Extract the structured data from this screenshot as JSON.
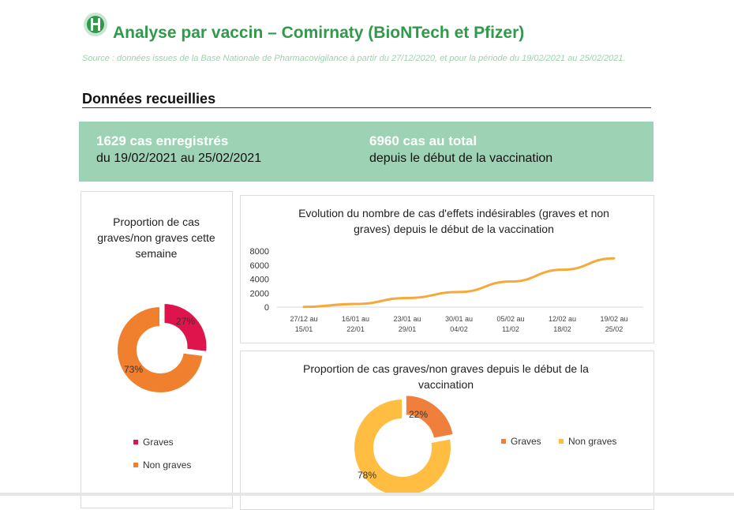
{
  "header": {
    "logo_icon": "ansm-logo-icon",
    "title": "Analyse par vaccin – Comirnaty (BioNTech et Pfizer)",
    "source": "Source : données issues de la Base Nationale de Pharmacovigilance à partir du 27/12/2020, et pour la période du 19/02/2021 au 25/02/2021."
  },
  "section": {
    "title": "Données recueillies"
  },
  "banner": {
    "left_big": "1629 cas enregistrés",
    "left_sub": "du 19/02/2021 au 25/02/2021",
    "right_big": "6960 cas au total",
    "right_sub": "depuis le début de la vaccination"
  },
  "colors": {
    "graves_week": "#e0144c",
    "non_graves_week": "#f07f2e",
    "graves_total": "#ef7f3b",
    "non_graves_total": "#ffbe42",
    "line": "#f6a93b",
    "banner": "#9dd3b4",
    "title_green": "#2f9a4a"
  },
  "chart_data": [
    {
      "type": "pie",
      "title": "Proportion de cas graves/non graves cette semaine",
      "categories": [
        "Graves",
        "Non graves"
      ],
      "values": [
        27,
        73
      ],
      "labels": [
        "27%",
        "73%"
      ],
      "legend_position": "bottom"
    },
    {
      "type": "line",
      "title": "Evolution du nombre de cas d'effets indésirables (graves et non graves) depuis le début de la vaccination",
      "categories": [
        "27/12 au 15/01",
        "16/01 au 22/01",
        "23/01 au 29/01",
        "30/01 au 04/02",
        "05/02 au 11/02",
        "12/02 au 18/02",
        "19/02 au 25/02"
      ],
      "category_lines": [
        [
          "27/12 au",
          "15/01"
        ],
        [
          "16/01 au",
          "22/01"
        ],
        [
          "23/01 au",
          "29/01"
        ],
        [
          "30/01 au",
          "04/02"
        ],
        [
          "05/02 au",
          "11/02"
        ],
        [
          "12/02 au",
          "18/02"
        ],
        [
          "19/02 au",
          "25/02"
        ]
      ],
      "values": [
        30,
        450,
        1300,
        2150,
        3650,
        5331,
        6960
      ],
      "ylim": [
        0,
        8000
      ],
      "yticks": [
        0,
        2000,
        4000,
        6000,
        8000
      ],
      "grid": false,
      "xlabel": "",
      "ylabel": ""
    },
    {
      "type": "pie",
      "title": "Proportion de cas graves/non graves depuis le début de la vaccination",
      "categories": [
        "Graves",
        "Non graves"
      ],
      "values": [
        22,
        78
      ],
      "labels": [
        "22%",
        "78%"
      ],
      "legend_position": "right"
    }
  ]
}
